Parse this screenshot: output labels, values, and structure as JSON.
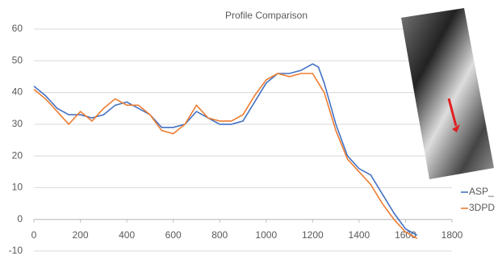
{
  "chart_data": {
    "type": "line",
    "title": "Profile  Comparison",
    "x": [
      0,
      50,
      100,
      150,
      200,
      250,
      300,
      350,
      400,
      450,
      500,
      550,
      600,
      650,
      700,
      750,
      800,
      850,
      900,
      950,
      1000,
      1050,
      1100,
      1150,
      1200,
      1225,
      1250,
      1300,
      1350,
      1400,
      1450,
      1500,
      1550,
      1600,
      1650
    ],
    "series": [
      {
        "name": "ASP_",
        "color": "#4472c4",
        "values": [
          42,
          39,
          35,
          33,
          33,
          32,
          33,
          36,
          37,
          35,
          33,
          29,
          29,
          30,
          34,
          32,
          30,
          30,
          31,
          37,
          43,
          46,
          46,
          47,
          49,
          48,
          43,
          30,
          20,
          16,
          14,
          8,
          2,
          -3,
          -5
        ]
      },
      {
        "name": "3DPD",
        "color": "#ed7d31",
        "values": [
          41,
          38,
          34,
          30,
          34,
          31,
          35,
          38,
          36,
          36,
          33,
          28,
          27,
          30,
          36,
          32,
          31,
          31,
          33,
          39,
          44,
          46,
          45,
          46,
          46,
          43,
          40,
          28,
          19,
          15,
          11,
          5,
          0,
          -4,
          -6
        ]
      }
    ],
    "xlim": [
      0,
      1800
    ],
    "xticks": [
      0,
      200,
      400,
      600,
      800,
      1000,
      1200,
      1400,
      1600,
      1800
    ],
    "ylim": [
      -10,
      60
    ],
    "yticks": [
      -10,
      0,
      10,
      20,
      30,
      40,
      50,
      60
    ],
    "grid": true
  }
}
